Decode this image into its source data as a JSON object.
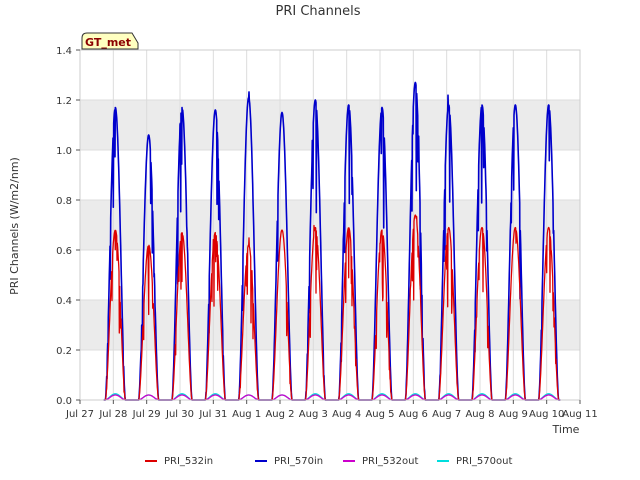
{
  "chart_data": {
    "type": "line",
    "title": "PRI Channels",
    "xlabel": "Time",
    "ylabel": "PRI Channels (W/m2/nm)",
    "site_badge": "GT_met",
    "ylim": [
      0.0,
      1.4
    ],
    "yticks": [
      "0.0",
      "0.2",
      "0.4",
      "0.6",
      "0.8",
      "1.0",
      "1.2",
      "1.4"
    ],
    "xlim_days": [
      0,
      15
    ],
    "xticks": [
      "Jul 27",
      "Jul 28",
      "Jul 29",
      "Jul 30",
      "Jul 31",
      "Aug 1",
      "Aug 2",
      "Aug 3",
      "Aug 4",
      "Aug 5",
      "Aug 6",
      "Aug 7",
      "Aug 8",
      "Aug 9",
      "Aug 10",
      "Aug 11"
    ],
    "bands": [
      [
        0.2,
        0.4
      ],
      [
        0.6,
        0.8
      ],
      [
        1.0,
        1.2
      ]
    ],
    "colors": {
      "band": "#ebebeb",
      "grid": "#dcdcdc",
      "badge_fill": "#ffffc0",
      "badge_text": "#8b0000"
    },
    "daily_peaks": {
      "days": [
        "Jul 28",
        "Jul 29",
        "Jul 30",
        "Jul 31",
        "Aug 1",
        "Aug 2",
        "Aug 3",
        "Aug 4",
        "Aug 5",
        "Aug 6",
        "Aug 7",
        "Aug 8",
        "Aug 9",
        "Aug 10"
      ],
      "PRI_532in": [
        0.68,
        0.62,
        0.67,
        0.67,
        0.62,
        0.68,
        0.69,
        0.69,
        0.68,
        0.74,
        0.69,
        0.69,
        0.69,
        0.69
      ],
      "PRI_570in": [
        1.17,
        1.06,
        1.17,
        1.16,
        1.21,
        1.15,
        1.2,
        1.18,
        1.17,
        1.27,
        1.18,
        1.18,
        1.18,
        1.18
      ],
      "PRI_532out": [
        0.02,
        0.02,
        0.02,
        0.02,
        0.02,
        0.02,
        0.02,
        0.02,
        0.02,
        0.02,
        0.02,
        0.02,
        0.02,
        0.02
      ],
      "PRI_570out": [
        0.025,
        0.02,
        0.025,
        0.025,
        0.02,
        0.02,
        0.025,
        0.025,
        0.025,
        0.025,
        0.025,
        0.025,
        0.025,
        0.025
      ]
    },
    "series": [
      {
        "name": "PRI_532in",
        "color": "#dd0000"
      },
      {
        "name": "PRI_570in",
        "color": "#0000cc"
      },
      {
        "name": "PRI_532out",
        "color": "#cc00cc"
      },
      {
        "name": "PRI_570out",
        "color": "#00dddd"
      }
    ]
  }
}
